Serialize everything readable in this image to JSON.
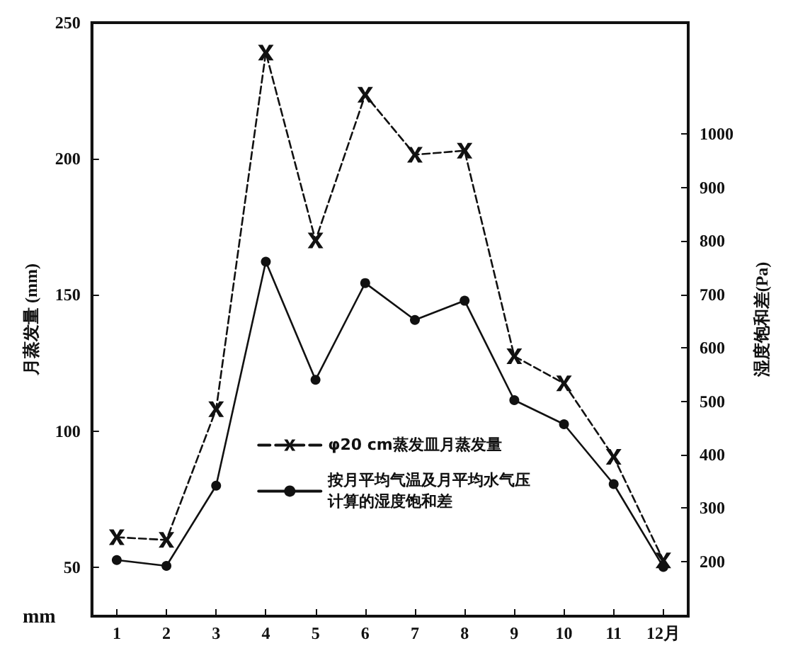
{
  "chart_data": {
    "type": "line",
    "ylabel": "月蒸发量 (mm)",
    "y2label": "湿度饱和差(Pa)",
    "annotations": [
      "mm"
    ],
    "categories": [
      "1",
      "2",
      "3",
      "4",
      "5",
      "6",
      "7",
      "8",
      "9",
      "10",
      "11",
      "12月"
    ],
    "ylim": [
      32,
      250
    ],
    "yticks": [
      50,
      100,
      150,
      200,
      250
    ],
    "y2lim": [
      98,
      1208
    ],
    "y2ticks": [
      200,
      300,
      400,
      500,
      600,
      700,
      800,
      900,
      1000
    ],
    "legend": "center",
    "series": [
      {
        "name": "φ20 cm蒸发皿月蒸发量",
        "color": "#111111",
        "marker": "cross",
        "line_style": "dashed",
        "values": [
          61,
          60,
          108,
          239,
          170,
          223.5,
          201.5,
          203,
          127.5,
          117.5,
          90.5,
          52.5
        ]
      },
      {
        "name": "按月平均气温及月平均水气压计算的湿度饱和差",
        "color": "#111111",
        "marker": "circle",
        "line_style": "solid",
        "axis": "y2",
        "values": [
          203,
          192,
          342,
          761,
          540,
          721,
          652,
          688,
          502,
          457,
          345,
          190
        ]
      }
    ]
  }
}
